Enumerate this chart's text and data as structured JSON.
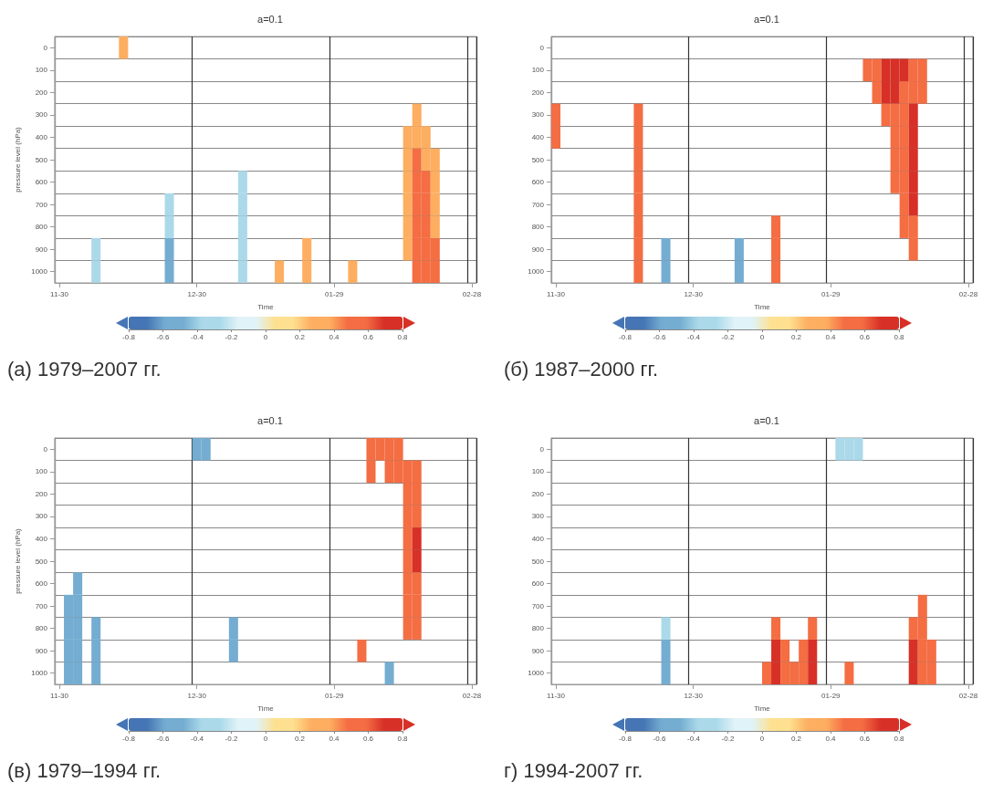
{
  "chart_data": [
    {
      "type": "heatmap",
      "title": "a=0.1",
      "xlabel": "Time",
      "ylabel": "pressure level (hPa)",
      "categories": [
        "11-30",
        null,
        null,
        null,
        null,
        null,
        null,
        null,
        null,
        null,
        null,
        null,
        null,
        null,
        null,
        "12-30",
        null,
        null,
        null,
        null,
        null,
        null,
        null,
        null,
        null,
        null,
        null,
        null,
        null,
        null,
        "01-29",
        null,
        null,
        null,
        null,
        null,
        null,
        null,
        null,
        null,
        null,
        null,
        null,
        null,
        null,
        "02-28"
      ],
      "y_categories": [
        "0",
        "100",
        "200",
        "300",
        "400",
        "500",
        "600",
        "700",
        "800",
        "900",
        "1000"
      ],
      "clim": [
        -0.8,
        0.8
      ],
      "cticks": [
        -0.8,
        -0.6,
        -0.4,
        -0.2,
        0,
        0.2,
        0.4,
        0.6,
        0.8
      ],
      "grid": true,
      "annotations": [
        "(а) 1979–2007 гг."
      ],
      "cells": [
        [
          null,
          null,
          null,
          null,
          null,
          null,
          null,
          0.3,
          null,
          null,
          null,
          null,
          null,
          null,
          null,
          null,
          null,
          null,
          null,
          null,
          null,
          null,
          null,
          null,
          null,
          null,
          null,
          null,
          null,
          null,
          null,
          null,
          null,
          null,
          null,
          null,
          null,
          null,
          null,
          null,
          null,
          null,
          null,
          null,
          null,
          null
        ],
        [
          null,
          null,
          null,
          null,
          null,
          null,
          null,
          null,
          null,
          null,
          null,
          null,
          null,
          null,
          null,
          null,
          null,
          null,
          null,
          null,
          null,
          null,
          null,
          null,
          null,
          null,
          null,
          null,
          null,
          null,
          null,
          null,
          null,
          null,
          null,
          null,
          null,
          null,
          null,
          null,
          null,
          null,
          null,
          null,
          null,
          null
        ],
        [
          null,
          null,
          null,
          null,
          null,
          null,
          null,
          null,
          null,
          null,
          null,
          null,
          null,
          null,
          null,
          null,
          null,
          null,
          null,
          null,
          null,
          null,
          null,
          null,
          null,
          null,
          null,
          null,
          null,
          null,
          null,
          null,
          null,
          null,
          null,
          null,
          null,
          null,
          null,
          null,
          null,
          null,
          null,
          null,
          null,
          null
        ],
        [
          null,
          null,
          null,
          null,
          null,
          null,
          null,
          null,
          null,
          null,
          null,
          null,
          null,
          null,
          null,
          null,
          null,
          null,
          null,
          null,
          null,
          null,
          null,
          null,
          null,
          null,
          null,
          null,
          null,
          null,
          null,
          null,
          null,
          null,
          null,
          null,
          null,
          null,
          null,
          0.3,
          null,
          null,
          null,
          null,
          null,
          null
        ],
        [
          null,
          null,
          null,
          null,
          null,
          null,
          null,
          null,
          null,
          null,
          null,
          null,
          null,
          null,
          null,
          null,
          null,
          null,
          null,
          null,
          null,
          null,
          null,
          null,
          null,
          null,
          null,
          null,
          null,
          null,
          null,
          null,
          null,
          null,
          null,
          null,
          null,
          null,
          0.3,
          0.3,
          0.3,
          null,
          null,
          null,
          null,
          null
        ],
        [
          null,
          null,
          null,
          null,
          null,
          null,
          null,
          null,
          null,
          null,
          null,
          null,
          null,
          null,
          null,
          null,
          null,
          null,
          null,
          null,
          null,
          null,
          null,
          null,
          null,
          null,
          null,
          null,
          null,
          null,
          null,
          null,
          null,
          null,
          null,
          null,
          null,
          null,
          0.3,
          0.5,
          0.3,
          0.3,
          null,
          null,
          null,
          null
        ],
        [
          null,
          null,
          null,
          null,
          null,
          null,
          null,
          null,
          null,
          null,
          null,
          null,
          null,
          null,
          null,
          null,
          null,
          null,
          null,
          null,
          -0.3,
          null,
          null,
          null,
          null,
          null,
          null,
          null,
          null,
          null,
          null,
          null,
          null,
          null,
          null,
          null,
          null,
          null,
          0.3,
          0.5,
          0.5,
          0.3,
          null,
          null,
          null,
          null
        ],
        [
          null,
          null,
          null,
          null,
          null,
          null,
          null,
          null,
          null,
          null,
          null,
          null,
          -0.3,
          null,
          null,
          null,
          null,
          null,
          null,
          null,
          -0.3,
          null,
          null,
          null,
          null,
          null,
          null,
          null,
          null,
          null,
          null,
          null,
          null,
          null,
          null,
          null,
          null,
          null,
          0.3,
          0.5,
          0.5,
          0.3,
          null,
          null,
          null,
          null
        ],
        [
          null,
          null,
          null,
          null,
          null,
          null,
          null,
          null,
          null,
          null,
          null,
          null,
          -0.3,
          null,
          null,
          null,
          null,
          null,
          null,
          null,
          -0.3,
          null,
          null,
          null,
          null,
          null,
          null,
          null,
          null,
          null,
          null,
          null,
          null,
          null,
          null,
          null,
          null,
          null,
          0.3,
          0.5,
          0.5,
          0.3,
          null,
          null,
          null,
          null
        ],
        [
          null,
          null,
          null,
          null,
          -0.3,
          null,
          null,
          null,
          null,
          null,
          null,
          null,
          -0.5,
          null,
          null,
          null,
          null,
          null,
          null,
          null,
          -0.3,
          null,
          null,
          null,
          null,
          null,
          null,
          0.3,
          null,
          null,
          null,
          null,
          null,
          null,
          null,
          null,
          null,
          null,
          0.3,
          0.5,
          0.5,
          0.5,
          null,
          null,
          null,
          null
        ],
        [
          null,
          null,
          null,
          null,
          -0.3,
          null,
          null,
          null,
          null,
          null,
          null,
          null,
          -0.5,
          null,
          null,
          null,
          null,
          null,
          null,
          null,
          -0.3,
          null,
          null,
          null,
          0.3,
          null,
          null,
          0.3,
          null,
          null,
          null,
          null,
          0.3,
          null,
          null,
          null,
          null,
          null,
          null,
          0.5,
          0.5,
          0.5,
          null,
          null,
          null,
          null
        ]
      ]
    },
    {
      "type": "heatmap",
      "title": "a=0.1",
      "xlabel": "Time",
      "categories": [
        "11-30",
        null,
        null,
        null,
        null,
        null,
        null,
        null,
        null,
        null,
        null,
        null,
        null,
        null,
        null,
        "12-30",
        null,
        null,
        null,
        null,
        null,
        null,
        null,
        null,
        null,
        null,
        null,
        null,
        null,
        null,
        "01-29",
        null,
        null,
        null,
        null,
        null,
        null,
        null,
        null,
        null,
        null,
        null,
        null,
        null,
        null,
        "02-28"
      ],
      "y_categories": [
        "0",
        "100",
        "200",
        "300",
        "400",
        "500",
        "600",
        "700",
        "800",
        "900",
        "1000"
      ],
      "clim": [
        -0.8,
        0.8
      ],
      "cticks": [
        -0.8,
        -0.6,
        -0.4,
        -0.2,
        0,
        0.2,
        0.4,
        0.6,
        0.8
      ],
      "grid": true,
      "annotations": [
        "(б) 1987–2000 гг."
      ],
      "cells": [
        [
          null,
          null,
          null,
          null,
          null,
          null,
          null,
          null,
          null,
          null,
          null,
          null,
          null,
          null,
          null,
          null,
          null,
          null,
          null,
          null,
          null,
          null,
          null,
          null,
          null,
          null,
          null,
          null,
          null,
          null,
          null,
          null,
          null,
          null,
          null,
          null,
          null,
          null,
          null,
          null,
          null,
          null,
          null,
          null,
          null,
          null
        ],
        [
          null,
          null,
          null,
          null,
          null,
          null,
          null,
          null,
          null,
          null,
          null,
          null,
          null,
          null,
          null,
          null,
          null,
          null,
          null,
          null,
          null,
          null,
          null,
          null,
          null,
          null,
          null,
          null,
          null,
          null,
          null,
          null,
          null,
          null,
          0.5,
          0.5,
          0.7,
          0.7,
          0.7,
          0.5,
          0.5,
          null,
          null,
          null,
          null,
          null
        ],
        [
          null,
          null,
          null,
          null,
          null,
          null,
          null,
          null,
          null,
          null,
          null,
          null,
          null,
          null,
          null,
          null,
          null,
          null,
          null,
          null,
          null,
          null,
          null,
          null,
          null,
          null,
          null,
          null,
          null,
          null,
          null,
          null,
          null,
          null,
          null,
          0.5,
          0.7,
          0.7,
          0.5,
          0.5,
          0.5,
          null,
          null,
          null,
          null,
          null
        ],
        [
          0.5,
          null,
          null,
          null,
          null,
          null,
          null,
          null,
          null,
          0.5,
          null,
          null,
          null,
          null,
          null,
          null,
          null,
          null,
          null,
          null,
          null,
          null,
          null,
          null,
          null,
          null,
          null,
          null,
          null,
          null,
          null,
          null,
          null,
          null,
          null,
          null,
          0.5,
          0.5,
          0.5,
          0.7,
          null,
          null,
          null,
          null,
          null,
          null
        ],
        [
          0.5,
          null,
          null,
          null,
          null,
          null,
          null,
          null,
          null,
          0.5,
          null,
          null,
          null,
          null,
          null,
          null,
          null,
          null,
          null,
          null,
          null,
          null,
          null,
          null,
          null,
          null,
          null,
          null,
          null,
          null,
          null,
          null,
          null,
          null,
          null,
          null,
          null,
          0.5,
          0.5,
          0.7,
          null,
          null,
          null,
          null,
          null,
          null
        ],
        [
          null,
          null,
          null,
          null,
          null,
          null,
          null,
          null,
          null,
          0.5,
          null,
          null,
          null,
          null,
          null,
          null,
          null,
          null,
          null,
          null,
          null,
          null,
          null,
          null,
          null,
          null,
          null,
          null,
          null,
          null,
          null,
          null,
          null,
          null,
          null,
          null,
          null,
          0.5,
          0.5,
          0.7,
          null,
          null,
          null,
          null,
          null,
          null
        ],
        [
          null,
          null,
          null,
          null,
          null,
          null,
          null,
          null,
          null,
          0.5,
          null,
          null,
          null,
          null,
          null,
          null,
          null,
          null,
          null,
          null,
          null,
          null,
          null,
          null,
          null,
          null,
          null,
          null,
          null,
          null,
          null,
          null,
          null,
          null,
          null,
          null,
          null,
          0.5,
          0.5,
          0.7,
          null,
          null,
          null,
          null,
          null,
          null
        ],
        [
          null,
          null,
          null,
          null,
          null,
          null,
          null,
          null,
          null,
          0.5,
          null,
          null,
          null,
          null,
          null,
          null,
          null,
          null,
          null,
          null,
          null,
          null,
          null,
          null,
          null,
          null,
          null,
          null,
          null,
          null,
          null,
          null,
          null,
          null,
          null,
          null,
          null,
          null,
          0.5,
          0.7,
          null,
          null,
          null,
          null,
          null,
          null
        ],
        [
          null,
          null,
          null,
          null,
          null,
          null,
          null,
          null,
          null,
          0.5,
          null,
          null,
          null,
          null,
          null,
          null,
          null,
          null,
          null,
          null,
          null,
          null,
          null,
          null,
          0.5,
          null,
          null,
          null,
          null,
          null,
          null,
          null,
          null,
          null,
          null,
          null,
          null,
          null,
          0.5,
          0.5,
          null,
          null,
          null,
          null,
          null,
          null
        ],
        [
          null,
          null,
          null,
          null,
          null,
          null,
          null,
          null,
          null,
          0.5,
          null,
          null,
          -0.5,
          null,
          null,
          null,
          null,
          null,
          null,
          null,
          -0.5,
          null,
          null,
          null,
          0.5,
          null,
          null,
          null,
          null,
          null,
          null,
          null,
          null,
          null,
          null,
          null,
          null,
          null,
          null,
          0.5,
          null,
          null,
          null,
          null,
          null,
          null
        ],
        [
          null,
          null,
          null,
          null,
          null,
          null,
          null,
          null,
          null,
          0.5,
          null,
          null,
          -0.5,
          null,
          null,
          null,
          null,
          null,
          null,
          null,
          -0.5,
          null,
          null,
          null,
          0.5,
          null,
          null,
          null,
          null,
          null,
          null,
          null,
          null,
          null,
          null,
          null,
          null,
          null,
          null,
          null,
          null,
          null,
          null,
          null,
          null,
          null
        ]
      ]
    },
    {
      "type": "heatmap",
      "title": "a=0.1",
      "xlabel": "Time",
      "ylabel": "pressure level (hPa)",
      "categories": [
        "11-30",
        null,
        null,
        null,
        null,
        null,
        null,
        null,
        null,
        null,
        null,
        null,
        null,
        null,
        null,
        "12-30",
        null,
        null,
        null,
        null,
        null,
        null,
        null,
        null,
        null,
        null,
        null,
        null,
        null,
        null,
        "01-29",
        null,
        null,
        null,
        null,
        null,
        null,
        null,
        null,
        null,
        null,
        null,
        null,
        null,
        null,
        "02-28"
      ],
      "y_categories": [
        "0",
        "100",
        "200",
        "300",
        "400",
        "500",
        "600",
        "700",
        "800",
        "900",
        "1000"
      ],
      "clim": [
        -0.8,
        0.8
      ],
      "cticks": [
        -0.8,
        -0.6,
        -0.4,
        -0.2,
        0,
        0.2,
        0.4,
        0.6,
        0.8
      ],
      "grid": true,
      "annotations": [
        "(в) 1979–1994 гг."
      ],
      "cells": [
        [
          null,
          null,
          null,
          null,
          null,
          null,
          null,
          null,
          null,
          null,
          null,
          null,
          null,
          null,
          null,
          -0.5,
          -0.5,
          null,
          null,
          null,
          null,
          null,
          null,
          null,
          null,
          null,
          null,
          null,
          null,
          null,
          null,
          null,
          null,
          null,
          0.5,
          0.5,
          0.5,
          0.5,
          null,
          null,
          null,
          null,
          null,
          null,
          null,
          null
        ],
        [
          null,
          null,
          null,
          null,
          null,
          null,
          null,
          null,
          null,
          null,
          null,
          null,
          null,
          null,
          null,
          null,
          null,
          null,
          null,
          null,
          null,
          null,
          null,
          null,
          null,
          null,
          null,
          null,
          null,
          null,
          null,
          null,
          null,
          null,
          0.5,
          null,
          0.5,
          0.5,
          0.5,
          0.5,
          null,
          null,
          null,
          null,
          null,
          null
        ],
        [
          null,
          null,
          null,
          null,
          null,
          null,
          null,
          null,
          null,
          null,
          null,
          null,
          null,
          null,
          null,
          null,
          null,
          null,
          null,
          null,
          null,
          null,
          null,
          null,
          null,
          null,
          null,
          null,
          null,
          null,
          null,
          null,
          null,
          null,
          null,
          null,
          null,
          null,
          0.5,
          0.5,
          null,
          null,
          null,
          null,
          null,
          null
        ],
        [
          null,
          null,
          null,
          null,
          null,
          null,
          null,
          null,
          null,
          null,
          null,
          null,
          null,
          null,
          null,
          null,
          null,
          null,
          null,
          null,
          null,
          null,
          null,
          null,
          null,
          null,
          null,
          null,
          null,
          null,
          null,
          null,
          null,
          null,
          null,
          null,
          null,
          null,
          0.5,
          0.5,
          null,
          null,
          null,
          null,
          null,
          null
        ],
        [
          null,
          null,
          null,
          null,
          null,
          null,
          null,
          null,
          null,
          null,
          null,
          null,
          null,
          null,
          null,
          null,
          null,
          null,
          null,
          null,
          null,
          null,
          null,
          null,
          null,
          null,
          null,
          null,
          null,
          null,
          null,
          null,
          null,
          null,
          null,
          null,
          null,
          null,
          0.5,
          0.7,
          null,
          null,
          null,
          null,
          null,
          null
        ],
        [
          null,
          null,
          null,
          null,
          null,
          null,
          null,
          null,
          null,
          null,
          null,
          null,
          null,
          null,
          null,
          null,
          null,
          null,
          null,
          null,
          null,
          null,
          null,
          null,
          null,
          null,
          null,
          null,
          null,
          null,
          null,
          null,
          null,
          null,
          null,
          null,
          null,
          null,
          0.5,
          0.7,
          null,
          null,
          null,
          null,
          null,
          null
        ],
        [
          null,
          null,
          -0.5,
          null,
          null,
          null,
          null,
          null,
          null,
          null,
          null,
          null,
          null,
          null,
          null,
          null,
          null,
          null,
          null,
          null,
          null,
          null,
          null,
          null,
          null,
          null,
          null,
          null,
          null,
          null,
          null,
          null,
          null,
          null,
          null,
          null,
          null,
          null,
          0.5,
          0.5,
          null,
          null,
          null,
          null,
          null,
          null
        ],
        [
          null,
          -0.5,
          -0.5,
          null,
          null,
          null,
          null,
          null,
          null,
          null,
          null,
          null,
          null,
          null,
          null,
          null,
          null,
          null,
          null,
          null,
          null,
          null,
          null,
          null,
          null,
          null,
          null,
          null,
          null,
          null,
          null,
          null,
          null,
          null,
          null,
          null,
          null,
          null,
          0.5,
          0.5,
          null,
          null,
          null,
          null,
          null,
          null
        ],
        [
          null,
          -0.5,
          -0.5,
          null,
          -0.5,
          null,
          null,
          null,
          null,
          null,
          null,
          null,
          null,
          null,
          null,
          null,
          null,
          null,
          null,
          -0.5,
          null,
          null,
          null,
          null,
          null,
          null,
          null,
          null,
          null,
          null,
          null,
          null,
          null,
          null,
          null,
          null,
          null,
          null,
          0.5,
          0.5,
          null,
          null,
          null,
          null,
          null,
          null
        ],
        [
          null,
          -0.5,
          -0.5,
          null,
          -0.5,
          null,
          null,
          null,
          null,
          null,
          null,
          null,
          null,
          null,
          null,
          null,
          null,
          null,
          null,
          -0.5,
          null,
          null,
          null,
          null,
          null,
          null,
          null,
          null,
          null,
          null,
          null,
          null,
          null,
          0.5,
          null,
          null,
          null,
          null,
          null,
          null,
          null,
          null,
          null,
          null,
          null,
          null
        ],
        [
          null,
          -0.5,
          -0.5,
          null,
          -0.5,
          null,
          null,
          null,
          null,
          null,
          null,
          null,
          null,
          null,
          null,
          null,
          null,
          null,
          null,
          null,
          null,
          null,
          null,
          null,
          null,
          null,
          null,
          null,
          null,
          null,
          null,
          null,
          null,
          null,
          null,
          null,
          -0.5,
          null,
          null,
          null,
          null,
          null,
          null,
          null,
          null,
          null
        ]
      ]
    },
    {
      "type": "heatmap",
      "title": "a=0.1",
      "xlabel": "Time",
      "categories": [
        "11-30",
        null,
        null,
        null,
        null,
        null,
        null,
        null,
        null,
        null,
        null,
        null,
        null,
        null,
        null,
        "12-30",
        null,
        null,
        null,
        null,
        null,
        null,
        null,
        null,
        null,
        null,
        null,
        null,
        null,
        null,
        "01-29",
        null,
        null,
        null,
        null,
        null,
        null,
        null,
        null,
        null,
        null,
        null,
        null,
        null,
        null,
        "02-28"
      ],
      "y_categories": [
        "0",
        "100",
        "200",
        "300",
        "400",
        "500",
        "600",
        "700",
        "800",
        "900",
        "1000"
      ],
      "clim": [
        -0.8,
        0.8
      ],
      "cticks": [
        -0.8,
        -0.6,
        -0.4,
        -0.2,
        0,
        0.2,
        0.4,
        0.6,
        0.8
      ],
      "grid": true,
      "annotations": [
        "г) 1994-2007 гг."
      ],
      "cells": [
        [
          null,
          null,
          null,
          null,
          null,
          null,
          null,
          null,
          null,
          null,
          null,
          null,
          null,
          null,
          null,
          null,
          null,
          null,
          null,
          null,
          null,
          null,
          null,
          null,
          null,
          null,
          null,
          null,
          null,
          null,
          null,
          -0.3,
          -0.3,
          -0.3,
          null,
          null,
          null,
          null,
          null,
          null,
          null,
          null,
          null,
          null,
          null,
          null
        ],
        [
          null,
          null,
          null,
          null,
          null,
          null,
          null,
          null,
          null,
          null,
          null,
          null,
          null,
          null,
          null,
          null,
          null,
          null,
          null,
          null,
          null,
          null,
          null,
          null,
          null,
          null,
          null,
          null,
          null,
          null,
          null,
          null,
          null,
          null,
          null,
          null,
          null,
          null,
          null,
          null,
          null,
          null,
          null,
          null,
          null,
          null
        ],
        [
          null,
          null,
          null,
          null,
          null,
          null,
          null,
          null,
          null,
          null,
          null,
          null,
          null,
          null,
          null,
          null,
          null,
          null,
          null,
          null,
          null,
          null,
          null,
          null,
          null,
          null,
          null,
          null,
          null,
          null,
          null,
          null,
          null,
          null,
          null,
          null,
          null,
          null,
          null,
          null,
          null,
          null,
          null,
          null,
          null,
          null
        ],
        [
          null,
          null,
          null,
          null,
          null,
          null,
          null,
          null,
          null,
          null,
          null,
          null,
          null,
          null,
          null,
          null,
          null,
          null,
          null,
          null,
          null,
          null,
          null,
          null,
          null,
          null,
          null,
          null,
          null,
          null,
          null,
          null,
          null,
          null,
          null,
          null,
          null,
          null,
          null,
          null,
          null,
          null,
          null,
          null,
          null,
          null
        ],
        [
          null,
          null,
          null,
          null,
          null,
          null,
          null,
          null,
          null,
          null,
          null,
          null,
          null,
          null,
          null,
          null,
          null,
          null,
          null,
          null,
          null,
          null,
          null,
          null,
          null,
          null,
          null,
          null,
          null,
          null,
          null,
          null,
          null,
          null,
          null,
          null,
          null,
          null,
          null,
          null,
          null,
          null,
          null,
          null,
          null,
          null
        ],
        [
          null,
          null,
          null,
          null,
          null,
          null,
          null,
          null,
          null,
          null,
          null,
          null,
          null,
          null,
          null,
          null,
          null,
          null,
          null,
          null,
          null,
          null,
          null,
          null,
          null,
          null,
          null,
          null,
          null,
          null,
          null,
          null,
          null,
          null,
          null,
          null,
          null,
          null,
          null,
          null,
          null,
          null,
          null,
          null,
          null,
          null
        ],
        [
          null,
          null,
          null,
          null,
          null,
          null,
          null,
          null,
          null,
          null,
          null,
          null,
          null,
          null,
          null,
          null,
          null,
          null,
          null,
          null,
          null,
          null,
          null,
          null,
          null,
          null,
          null,
          null,
          null,
          null,
          null,
          null,
          null,
          null,
          null,
          null,
          null,
          null,
          null,
          null,
          null,
          null,
          null,
          null,
          null,
          null
        ],
        [
          null,
          null,
          null,
          null,
          null,
          null,
          null,
          null,
          null,
          null,
          null,
          null,
          null,
          null,
          null,
          null,
          null,
          null,
          null,
          null,
          null,
          null,
          null,
          null,
          null,
          null,
          null,
          null,
          null,
          null,
          null,
          null,
          null,
          null,
          null,
          null,
          null,
          null,
          null,
          null,
          0.5,
          null,
          null,
          null,
          null,
          null
        ],
        [
          null,
          null,
          null,
          null,
          null,
          null,
          null,
          null,
          null,
          null,
          null,
          null,
          -0.3,
          null,
          null,
          null,
          null,
          null,
          null,
          null,
          null,
          null,
          null,
          null,
          0.5,
          null,
          null,
          null,
          0.5,
          null,
          null,
          null,
          null,
          null,
          null,
          null,
          null,
          null,
          null,
          0.5,
          0.5,
          null,
          null,
          null,
          null,
          null
        ],
        [
          null,
          null,
          null,
          null,
          null,
          null,
          null,
          null,
          null,
          null,
          null,
          null,
          -0.5,
          null,
          null,
          null,
          null,
          null,
          null,
          null,
          null,
          null,
          null,
          null,
          0.7,
          0.5,
          null,
          0.5,
          0.7,
          null,
          null,
          null,
          null,
          null,
          null,
          null,
          null,
          null,
          null,
          0.7,
          0.5,
          0.5,
          null,
          null,
          null,
          null
        ],
        [
          null,
          null,
          null,
          null,
          null,
          null,
          null,
          null,
          null,
          null,
          null,
          null,
          -0.5,
          null,
          null,
          null,
          null,
          null,
          null,
          null,
          null,
          null,
          null,
          0.5,
          0.7,
          0.5,
          0.5,
          0.5,
          0.7,
          null,
          null,
          null,
          0.5,
          null,
          null,
          null,
          null,
          null,
          null,
          0.7,
          0.5,
          0.5,
          null,
          null,
          null,
          null
        ]
      ]
    }
  ]
}
